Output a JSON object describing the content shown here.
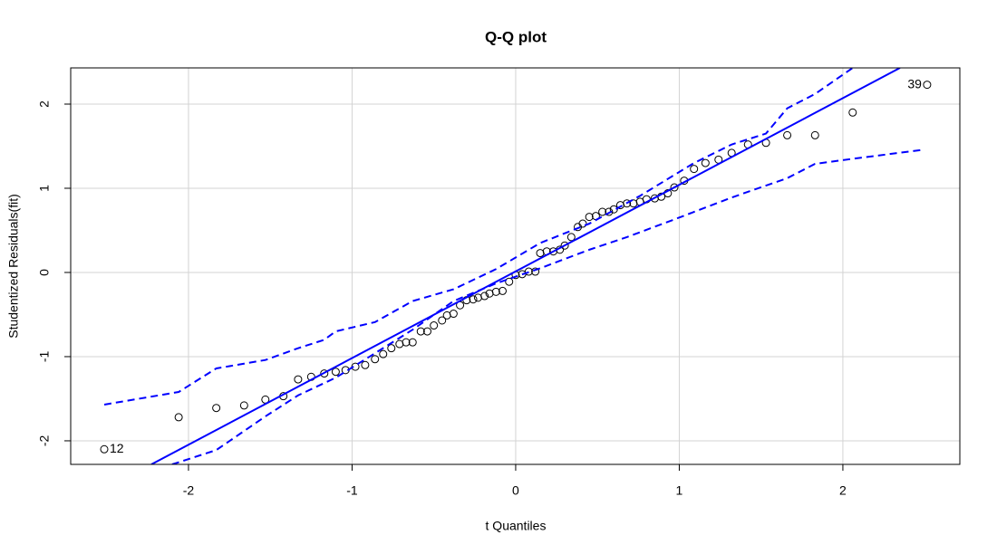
{
  "chart_data": {
    "type": "scatter",
    "title": "Q-Q plot",
    "x_label": "t Quantiles",
    "y_label": "Studentized Residuals(fit)",
    "xlim": [
      -2.72,
      2.715
    ],
    "ylim": [
      -2.28,
      2.43
    ],
    "xticks": [
      -2,
      -1,
      0,
      1,
      2
    ],
    "yticks": [
      -2,
      -1,
      0,
      1,
      2
    ],
    "grid": true,
    "series": [
      {
        "mode": "points",
        "color": "#000000",
        "x": [
          -2.515,
          -2.06,
          -1.83,
          -1.66,
          -1.53,
          -1.42,
          -1.33,
          -1.25,
          -1.17,
          -1.1,
          -1.04,
          -0.98,
          -0.92,
          -0.86,
          -0.81,
          -0.76,
          -0.71,
          -0.67,
          -0.63,
          -0.58,
          -0.54,
          -0.5,
          -0.45,
          -0.42,
          -0.38,
          -0.34,
          -0.3,
          -0.26,
          -0.23,
          -0.19,
          -0.16,
          -0.12,
          -0.08,
          -0.04,
          0,
          0.04,
          0.08,
          0.12,
          0.15,
          0.19,
          0.23,
          0.27,
          0.3,
          0.34,
          0.38,
          0.41,
          0.45,
          0.49,
          0.53,
          0.57,
          0.6,
          0.64,
          0.68,
          0.72,
          0.76,
          0.8,
          0.85,
          0.89,
          0.93,
          0.97,
          1.03,
          1.09,
          1.16,
          1.24,
          1.32,
          1.42,
          1.53,
          1.66,
          1.83,
          2.06,
          2.515
        ],
        "values": [
          -2.1,
          -1.72,
          -1.61,
          -1.58,
          -1.51,
          -1.47,
          -1.27,
          -1.24,
          -1.2,
          -1.18,
          -1.16,
          -1.12,
          -1.1,
          -1.03,
          -0.97,
          -0.9,
          -0.85,
          -0.83,
          -0.83,
          -0.7,
          -0.7,
          -0.63,
          -0.57,
          -0.51,
          -0.49,
          -0.39,
          -0.33,
          -0.32,
          -0.3,
          -0.28,
          -0.25,
          -0.23,
          -0.22,
          -0.11,
          -0.03,
          -0.02,
          0.01,
          0.01,
          0.23,
          0.25,
          0.25,
          0.27,
          0.32,
          0.42,
          0.54,
          0.58,
          0.66,
          0.67,
          0.72,
          0.72,
          0.75,
          0.8,
          0.82,
          0.82,
          0.84,
          0.87,
          0.88,
          0.9,
          0.94,
          1.01,
          1.09,
          1.23,
          1.3,
          1.34,
          1.42,
          1.52,
          1.54,
          1.63,
          1.63,
          1.9,
          2.23
        ],
        "labels": [
          "12",
          null,
          null,
          null,
          null,
          null,
          null,
          null,
          null,
          null,
          null,
          null,
          null,
          null,
          null,
          null,
          null,
          null,
          null,
          null,
          null,
          null,
          null,
          null,
          null,
          null,
          null,
          null,
          null,
          null,
          null,
          null,
          null,
          null,
          null,
          null,
          null,
          null,
          null,
          null,
          null,
          null,
          null,
          null,
          null,
          null,
          null,
          null,
          null,
          null,
          null,
          null,
          null,
          null,
          null,
          null,
          null,
          null,
          null,
          null,
          null,
          null,
          null,
          null,
          null,
          null,
          null,
          null,
          null,
          null,
          "39"
        ]
      },
      {
        "mode": "line",
        "linestyle": "solid",
        "color": "#0000ff",
        "x": [
          -2.227,
          2.349
        ],
        "values": [
          -2.28,
          2.43
        ]
      },
      {
        "mode": "line",
        "linestyle": "dashed",
        "color": "#0000ff",
        "x": [
          -2.515,
          -2.06,
          -1.83,
          -1.53,
          -1.33,
          -1.17,
          -1.1,
          -0.86,
          -0.63,
          -0.38,
          -0.12,
          0.15,
          0.45,
          0.76,
          1.09,
          1.32,
          1.53,
          1.66,
          1.83,
          2.06
        ],
        "values": [
          -1.57,
          -1.42,
          -1.14,
          -1.04,
          -0.9,
          -0.8,
          -0.7,
          -0.59,
          -0.34,
          -0.2,
          0.04,
          0.35,
          0.58,
          0.91,
          1.3,
          1.52,
          1.65,
          1.95,
          2.12,
          2.43
        ]
      },
      {
        "mode": "line",
        "linestyle": "dashed",
        "color": "#0000ff",
        "x": [
          -2.1,
          -1.83,
          -1.53,
          -1.33,
          -1.1,
          -0.86,
          -0.63,
          -0.38,
          -0.12,
          0.15,
          0.45,
          0.68,
          0.97,
          1.32,
          1.66,
          1.83,
          2.06,
          2.5
        ],
        "values": [
          -2.28,
          -2.11,
          -1.71,
          -1.46,
          -1.25,
          -0.96,
          -0.68,
          -0.34,
          -0.13,
          0.05,
          0.27,
          0.42,
          0.63,
          0.89,
          1.12,
          1.29,
          1.35,
          1.46
        ]
      }
    ]
  }
}
